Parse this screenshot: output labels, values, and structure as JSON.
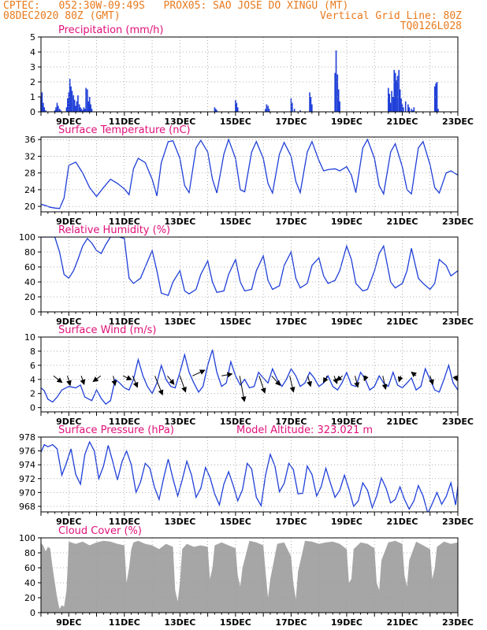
{
  "header": {
    "line1_left": "CPTEC:   052:30W-09:49S   PROX05: SAO JOSE DO XINGU (MT)",
    "line2_left": "08DEC2020 80Z (GMT)",
    "line2_right": "Vertical Grid Line: 80Z",
    "line3_right": "TQ0126L028"
  },
  "colors": {
    "header": "#e87a1e",
    "panel_title": "#e0107a",
    "series_line": "#1f3fd8",
    "precip_bar": "#1f3fd8",
    "cloud_fill": "#a6a6a6",
    "grid": "#999999",
    "wind_arrow": "#000000",
    "frame": "#000000"
  },
  "x_axis": {
    "start_day": 8.0,
    "end_day": 23.0,
    "tick_labels": [
      {
        "day": 9,
        "label": "9DEC"
      },
      {
        "day": 11,
        "label": "11DEC"
      },
      {
        "day": 13,
        "label": "13DEC"
      },
      {
        "day": 15,
        "label": "15DEC"
      },
      {
        "day": 17,
        "label": "17DEC"
      },
      {
        "day": 19,
        "label": "19DEC"
      },
      {
        "day": 21,
        "label": "21DEC"
      },
      {
        "day": 23,
        "label": "23DEC"
      }
    ],
    "vertical_grid": "dotted, every day"
  },
  "chart_data": [
    {
      "id": "precip",
      "type": "bar",
      "title": "Precipitation (mm/h)",
      "ylim": [
        0,
        5
      ],
      "yticks": [
        0,
        1,
        2,
        3,
        4,
        5
      ],
      "grid": true,
      "x": [
        8.0,
        8.04,
        8.08,
        8.12,
        8.17,
        8.21,
        8.25,
        8.29,
        8.33,
        8.38,
        8.42,
        8.46,
        8.5,
        8.54,
        8.58,
        8.62,
        8.67,
        8.71,
        8.75,
        8.79,
        8.83,
        8.88,
        8.92,
        8.96,
        9.0,
        9.04,
        9.08,
        9.12,
        9.17,
        9.21,
        9.25,
        9.29,
        9.33,
        9.38,
        9.42,
        9.46,
        9.5,
        9.54,
        9.58,
        9.62,
        9.67,
        9.71,
        9.75,
        9.79,
        9.83,
        14.25,
        14.29,
        14.33,
        15.0,
        15.04,
        15.08,
        16.08,
        16.12,
        16.17,
        16.21,
        17.0,
        17.04,
        17.12,
        17.33,
        17.67,
        17.71,
        17.75,
        18.58,
        18.62,
        18.67,
        18.71,
        18.75,
        20.5,
        20.54,
        20.58,
        20.62,
        20.67,
        20.71,
        20.75,
        20.79,
        20.83,
        20.88,
        20.92,
        20.96,
        21.0,
        21.04,
        21.12,
        21.21,
        21.25,
        21.33,
        21.38,
        21.42,
        22.17,
        22.21,
        22.25,
        22.29
      ],
      "values": [
        1.0,
        1.3,
        0.6,
        0.3,
        0.1,
        0,
        0,
        0,
        0,
        0,
        0,
        0,
        0.1,
        0.3,
        0.6,
        0.4,
        0.2,
        0.1,
        0,
        0,
        0,
        0,
        0.3,
        0.9,
        1.3,
        2.2,
        1.7,
        1.4,
        1.1,
        0.8,
        0.4,
        0.7,
        1.1,
        0.5,
        0.3,
        0.2,
        0.1,
        0.3,
        0.2,
        1.6,
        1.5,
        0.7,
        1.0,
        0.5,
        0.2,
        0.3,
        0.2,
        0.1,
        0.8,
        0.6,
        0.3,
        0.2,
        0.5,
        0.4,
        0.2,
        0.9,
        0.6,
        0.2,
        0.1,
        1.3,
        1.0,
        0.5,
        2.6,
        4.1,
        2.5,
        1.5,
        0.7,
        1.6,
        1.2,
        0.6,
        1.4,
        1.0,
        2.8,
        2.6,
        2.1,
        2.4,
        2.8,
        1.5,
        0.9,
        0.5,
        0.3,
        0.7,
        0.5,
        0.3,
        0.2,
        0.1,
        0.3,
        1.7,
        1.9,
        2.0,
        0.2
      ]
    },
    {
      "id": "temp",
      "type": "line",
      "title": "Surface Temperature (nC)",
      "ylim": [
        18.7,
        36.6
      ],
      "yticks": [
        20,
        24,
        28,
        32,
        36
      ],
      "grid": true,
      "x": [
        8.0,
        8.17,
        8.33,
        8.5,
        8.67,
        8.83,
        9.0,
        9.25,
        9.5,
        9.75,
        10.0,
        10.25,
        10.5,
        10.75,
        11.0,
        11.17,
        11.33,
        11.5,
        11.75,
        12.0,
        12.17,
        12.33,
        12.58,
        12.75,
        13.0,
        13.17,
        13.33,
        13.58,
        13.75,
        14.0,
        14.17,
        14.33,
        14.58,
        14.75,
        15.0,
        15.17,
        15.33,
        15.58,
        15.75,
        16.0,
        16.17,
        16.33,
        16.58,
        16.75,
        17.0,
        17.17,
        17.33,
        17.58,
        17.75,
        18.0,
        18.17,
        18.33,
        18.58,
        18.75,
        19.0,
        19.17,
        19.33,
        19.58,
        19.75,
        20.0,
        20.17,
        20.33,
        20.58,
        20.75,
        21.0,
        21.17,
        21.33,
        21.58,
        21.75,
        22.0,
        22.17,
        22.33,
        22.58,
        22.75,
        23.0
      ],
      "values": [
        20.5,
        20.2,
        19.8,
        19.6,
        19.5,
        22.0,
        29.8,
        30.6,
        28.0,
        24.5,
        22.4,
        24.5,
        26.5,
        25.5,
        24.2,
        22.8,
        29.0,
        31.5,
        30.5,
        26.5,
        22.5,
        30.5,
        35.5,
        35.7,
        31.5,
        25.0,
        23.3,
        34.0,
        35.8,
        33.0,
        26.5,
        23.2,
        32.5,
        36.0,
        31.5,
        24.0,
        23.5,
        33.0,
        35.5,
        31.5,
        25.5,
        23.2,
        32.5,
        35.3,
        32.0,
        26.0,
        23.3,
        33.0,
        35.5,
        31.0,
        28.5,
        28.8,
        29.0,
        28.5,
        29.5,
        27.5,
        23.3,
        34.0,
        36.0,
        31.5,
        25.0,
        23.0,
        33.0,
        35.0,
        29.5,
        24.0,
        23.0,
        34.0,
        35.5,
        30.0,
        24.5,
        23.2,
        28.0,
        28.5,
        27.5
      ]
    },
    {
      "id": "rh",
      "type": "line",
      "title": "Relative Humidity (%)",
      "ylim": [
        0,
        100
      ],
      "yticks": [
        0,
        20,
        40,
        60,
        80,
        100
      ],
      "grid": true,
      "x": [
        8.0,
        8.17,
        8.33,
        8.5,
        8.67,
        8.83,
        9.0,
        9.17,
        9.33,
        9.5,
        9.67,
        9.83,
        10.0,
        10.17,
        10.33,
        10.5,
        10.67,
        10.83,
        11.0,
        11.17,
        11.33,
        11.58,
        11.75,
        12.0,
        12.17,
        12.33,
        12.58,
        12.75,
        13.0,
        13.17,
        13.33,
        13.58,
        13.75,
        14.0,
        14.17,
        14.33,
        14.58,
        14.75,
        15.0,
        15.17,
        15.33,
        15.58,
        15.75,
        16.0,
        16.17,
        16.33,
        16.58,
        16.75,
        17.0,
        17.17,
        17.33,
        17.58,
        17.75,
        18.0,
        18.17,
        18.33,
        18.58,
        18.75,
        19.0,
        19.17,
        19.33,
        19.58,
        19.75,
        20.0,
        20.17,
        20.33,
        20.58,
        20.75,
        21.0,
        21.17,
        21.33,
        21.58,
        21.75,
        22.0,
        22.17,
        22.33,
        22.58,
        22.75,
        23.0
      ],
      "values": [
        100,
        100,
        100,
        100,
        80,
        50,
        45,
        55,
        70,
        88,
        98,
        92,
        82,
        78,
        90,
        100,
        100,
        100,
        98,
        45,
        38,
        45,
        60,
        82,
        55,
        25,
        22,
        40,
        55,
        28,
        24,
        30,
        50,
        68,
        40,
        26,
        28,
        50,
        70,
        40,
        28,
        30,
        55,
        75,
        42,
        30,
        35,
        62,
        80,
        45,
        32,
        38,
        62,
        72,
        48,
        38,
        42,
        55,
        88,
        70,
        38,
        28,
        30,
        55,
        78,
        88,
        40,
        32,
        38,
        55,
        85,
        45,
        38,
        30,
        38,
        70,
        62,
        48,
        55
      ]
    },
    {
      "id": "wind",
      "type": "line",
      "title": "Surface Wind (m/s)",
      "ylim": [
        -0.6,
        10
      ],
      "yticks": [
        0,
        2,
        4,
        6,
        8,
        10
      ],
      "grid": true,
      "x": [
        8.0,
        8.12,
        8.25,
        8.42,
        8.58,
        8.75,
        9.0,
        9.25,
        9.42,
        9.58,
        9.83,
        10.0,
        10.17,
        10.33,
        10.5,
        10.67,
        10.83,
        11.0,
        11.17,
        11.33,
        11.5,
        11.67,
        11.83,
        12.0,
        12.17,
        12.33,
        12.5,
        12.67,
        12.83,
        13.0,
        13.17,
        13.33,
        13.5,
        13.67,
        13.83,
        14.0,
        14.17,
        14.33,
        14.5,
        14.67,
        14.83,
        15.0,
        15.17,
        15.33,
        15.5,
        15.67,
        15.83,
        16.0,
        16.17,
        16.33,
        16.5,
        16.67,
        16.83,
        17.0,
        17.17,
        17.33,
        17.5,
        17.67,
        17.83,
        18.0,
        18.17,
        18.33,
        18.5,
        18.67,
        18.83,
        19.0,
        19.17,
        19.33,
        19.5,
        19.67,
        19.83,
        20.0,
        20.17,
        20.33,
        20.5,
        20.67,
        20.83,
        21.0,
        21.17,
        21.33,
        21.5,
        21.67,
        21.83,
        22.0,
        22.17,
        22.33,
        22.5,
        22.67,
        22.83,
        23.0
      ],
      "values": [
        2.8,
        2.4,
        1.2,
        0.8,
        1.5,
        2.5,
        3.0,
        2.8,
        3.2,
        1.5,
        1.0,
        2.5,
        1.3,
        0.5,
        1.0,
        4.0,
        3.5,
        2.8,
        2.5,
        4.0,
        6.8,
        4.5,
        3.0,
        2.0,
        3.5,
        6.0,
        4.0,
        3.0,
        2.8,
        5.0,
        7.5,
        5.0,
        3.5,
        2.2,
        3.0,
        6.0,
        8.2,
        5.0,
        3.0,
        3.5,
        6.5,
        4.5,
        3.2,
        4.0,
        2.8,
        3.0,
        5.0,
        4.2,
        3.5,
        5.5,
        4.0,
        3.0,
        4.0,
        5.5,
        4.5,
        3.0,
        3.5,
        5.0,
        4.2,
        3.0,
        3.5,
        4.5,
        3.0,
        2.5,
        3.5,
        5.0,
        3.2,
        3.0,
        5.0,
        4.0,
        2.5,
        3.0,
        4.5,
        3.5,
        3.0,
        5.0,
        3.2,
        2.8,
        3.5,
        4.2,
        2.5,
        3.0,
        5.5,
        4.0,
        2.5,
        2.2,
        4.0,
        6.0,
        3.5,
        2.5
      ],
      "arrows": [
        {
          "day": 8.45,
          "u": 0.9,
          "v": 0.7
        },
        {
          "day": 8.95,
          "u": 0.3,
          "v": 1.0
        },
        {
          "day": 9.45,
          "u": 0.3,
          "v": 0.9
        },
        {
          "day": 10.15,
          "u": -0.8,
          "v": 0.6
        },
        {
          "day": 10.6,
          "u": 0.2,
          "v": 1.0
        },
        {
          "day": 10.95,
          "u": 0.9,
          "v": 0.4
        },
        {
          "day": 11.3,
          "u": 0.5,
          "v": 1.2
        },
        {
          "day": 12.1,
          "u": 0.8,
          "v": 2.0
        },
        {
          "day": 12.55,
          "u": 0.7,
          "v": 0.9
        },
        {
          "day": 13.0,
          "u": 0.6,
          "v": 1.7
        },
        {
          "day": 13.45,
          "u": 1.3,
          "v": -0.6
        },
        {
          "day": 14.5,
          "u": 1.1,
          "v": -0.2
        },
        {
          "day": 15.15,
          "u": 0.5,
          "v": 2.7
        },
        {
          "day": 15.85,
          "u": 0.6,
          "v": 1.8
        },
        {
          "day": 16.3,
          "u": 0.9,
          "v": 1.0
        },
        {
          "day": 16.95,
          "u": 0.4,
          "v": 1.7
        },
        {
          "day": 17.6,
          "u": 0.3,
          "v": 1.1
        },
        {
          "day": 18.3,
          "u": -0.4,
          "v": 0.7
        },
        {
          "day": 18.55,
          "u": 0.3,
          "v": 0.8
        },
        {
          "day": 18.85,
          "u": -0.6,
          "v": 0.5
        },
        {
          "day": 19.3,
          "u": 0.3,
          "v": 1.2
        },
        {
          "day": 19.7,
          "u": -0.2,
          "v": 0.5
        },
        {
          "day": 20.3,
          "u": 0.3,
          "v": 1.4
        },
        {
          "day": 20.95,
          "u": -0.2,
          "v": 0.6
        },
        {
          "day": 21.5,
          "u": -0.5,
          "v": -0.4
        },
        {
          "day": 22.0,
          "u": 0.3,
          "v": 0.9
        },
        {
          "day": 22.9,
          "u": 0.2,
          "v": 0.5
        }
      ]
    },
    {
      "id": "pressure",
      "type": "line",
      "title": "Surface Pressure (hPa)",
      "annotation": "Model Altitude: 323.021 m",
      "ylim": [
        967.2,
        978
      ],
      "yticks": [
        968,
        970,
        972,
        974,
        976,
        978
      ],
      "grid": true,
      "x": [
        8.0,
        8.12,
        8.25,
        8.42,
        8.58,
        8.75,
        8.92,
        9.08,
        9.25,
        9.42,
        9.58,
        9.75,
        9.92,
        10.08,
        10.25,
        10.42,
        10.58,
        10.75,
        10.92,
        11.08,
        11.25,
        11.42,
        11.58,
        11.75,
        11.92,
        12.08,
        12.25,
        12.42,
        12.58,
        12.75,
        12.92,
        13.08,
        13.25,
        13.42,
        13.58,
        13.75,
        13.92,
        14.08,
        14.25,
        14.42,
        14.58,
        14.75,
        14.92,
        15.08,
        15.25,
        15.42,
        15.58,
        15.75,
        15.92,
        16.08,
        16.25,
        16.42,
        16.58,
        16.75,
        16.92,
        17.08,
        17.25,
        17.42,
        17.58,
        17.75,
        17.92,
        18.08,
        18.25,
        18.42,
        18.58,
        18.75,
        18.92,
        19.08,
        19.25,
        19.42,
        19.58,
        19.75,
        19.92,
        20.08,
        20.25,
        20.42,
        20.58,
        20.75,
        20.92,
        21.08,
        21.25,
        21.42,
        21.58,
        21.75,
        21.92,
        22.08,
        22.25,
        22.42,
        22.58,
        22.75,
        22.92,
        23.0
      ],
      "values": [
        975.8,
        976.9,
        976.6,
        976.9,
        976.3,
        972.5,
        974.3,
        976.3,
        972.6,
        971.2,
        975.5,
        977.3,
        976.0,
        972.0,
        973.8,
        976.8,
        974.5,
        971.8,
        974.5,
        976.0,
        974.0,
        970.0,
        971.5,
        974.2,
        973.5,
        970.8,
        969.0,
        972.2,
        974.8,
        972.0,
        969.5,
        971.8,
        974.5,
        972.5,
        969.3,
        970.6,
        973.6,
        972.2,
        969.8,
        968.2,
        971.2,
        973.0,
        971.0,
        968.8,
        970.4,
        974.2,
        973.4,
        969.3,
        968.1,
        972.5,
        975.5,
        973.8,
        970.1,
        971.3,
        974.2,
        973.3,
        969.8,
        969.9,
        973.8,
        972.6,
        969.5,
        970.8,
        973.5,
        971.3,
        969.3,
        970.3,
        972.5,
        970.5,
        968.0,
        968.8,
        971.4,
        970.3,
        967.8,
        969.5,
        972.1,
        970.6,
        968.5,
        969.0,
        970.8,
        969.0,
        967.6,
        968.8,
        971.0,
        969.5,
        967.0,
        968.4,
        970.0,
        968.3,
        969.4,
        971.4,
        968.2,
        970.9
      ]
    },
    {
      "id": "cloud",
      "type": "area",
      "title": "Cloud Cover (%)",
      "ylim": [
        0,
        100
      ],
      "yticks": [
        0,
        20,
        40,
        60,
        80,
        100
      ],
      "grid": true,
      "x": [
        8.0,
        8.08,
        8.17,
        8.25,
        8.33,
        8.42,
        8.5,
        8.58,
        8.67,
        8.75,
        8.83,
        8.92,
        9.0,
        9.25,
        9.5,
        9.75,
        10.0,
        10.25,
        10.5,
        10.75,
        11.0,
        11.08,
        11.17,
        11.25,
        11.33,
        11.5,
        11.75,
        12.0,
        12.25,
        12.5,
        12.75,
        12.83,
        12.92,
        13.0,
        13.08,
        13.25,
        13.5,
        13.75,
        14.0,
        14.08,
        14.17,
        14.25,
        14.5,
        14.75,
        15.0,
        15.08,
        15.17,
        15.25,
        15.5,
        15.75,
        16.0,
        16.08,
        16.17,
        16.25,
        16.5,
        16.75,
        17.0,
        17.08,
        17.17,
        17.25,
        17.5,
        17.75,
        18.0,
        18.25,
        18.5,
        18.75,
        19.0,
        19.08,
        19.17,
        19.25,
        19.5,
        19.75,
        20.0,
        20.08,
        20.17,
        20.25,
        20.5,
        20.75,
        21.0,
        21.08,
        21.17,
        21.25,
        21.5,
        21.75,
        22.0,
        22.08,
        22.17,
        22.25,
        22.5,
        22.75,
        23.0
      ],
      "values": [
        93,
        90,
        82,
        88,
        86,
        60,
        40,
        20,
        5,
        10,
        8,
        30,
        95,
        92,
        95,
        90,
        94,
        96,
        95,
        92,
        90,
        40,
        60,
        85,
        94,
        96,
        92,
        90,
        85,
        92,
        88,
        30,
        15,
        40,
        85,
        92,
        88,
        90,
        88,
        45,
        60,
        90,
        94,
        90,
        86,
        50,
        35,
        60,
        96,
        94,
        90,
        55,
        20,
        45,
        92,
        94,
        75,
        40,
        18,
        55,
        96,
        95,
        92,
        94,
        95,
        92,
        85,
        40,
        45,
        85,
        94,
        92,
        86,
        40,
        30,
        70,
        94,
        96,
        92,
        50,
        35,
        70,
        95,
        90,
        85,
        45,
        60,
        88,
        95,
        92,
        94
      ]
    }
  ]
}
